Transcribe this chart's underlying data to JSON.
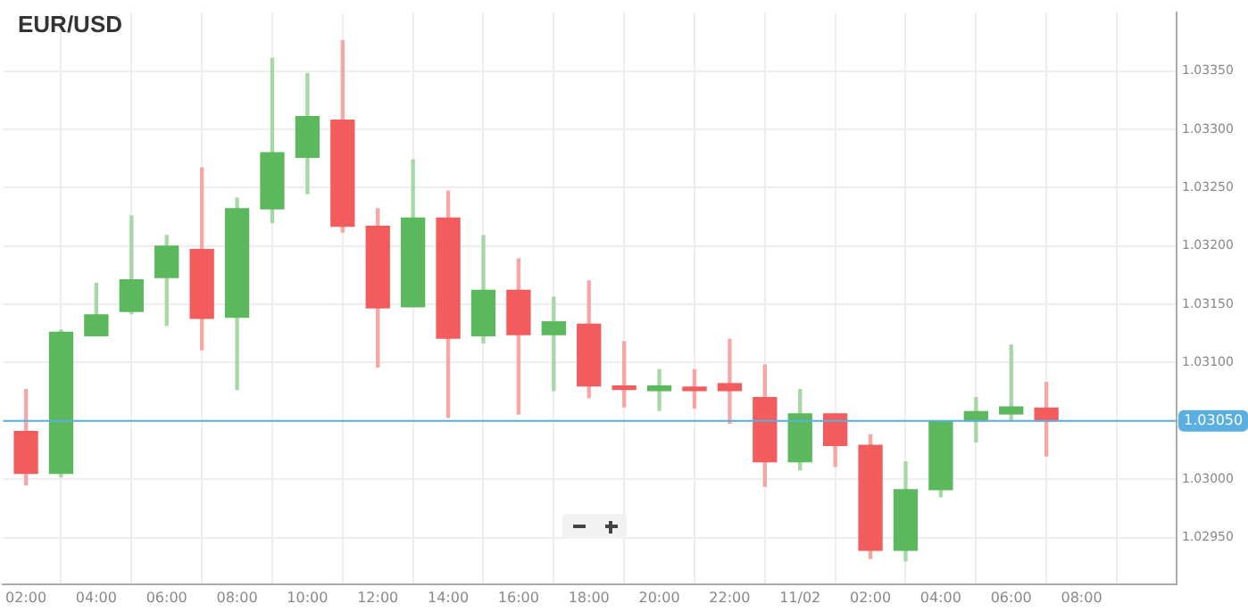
{
  "chart_data": {
    "type": "candlestick",
    "title": "EUR/USD",
    "x": [
      "--11-01T02:00",
      "--11-01T03:00",
      "--11-01T04:00",
      "--11-01T05:00",
      "--11-01T06:00",
      "--11-01T07:00",
      "--11-01T08:00",
      "--11-01T09:00",
      "--11-01T10:00",
      "--11-01T11:00",
      "--11-01T12:00",
      "--11-01T13:00",
      "--11-01T14:00",
      "--11-01T15:00",
      "--11-01T16:00",
      "--11-01T17:00",
      "--11-01T18:00",
      "--11-01T19:00",
      "--11-01T20:00",
      "--11-01T21:00",
      "--11-01T22:00",
      "--11-01T23:00",
      "--11-02T00:00",
      "--11-02T01:00",
      "--11-02T02:00",
      "--11-02T03:00",
      "--11-02T04:00",
      "--11-02T05:00",
      "--11-02T06:00",
      "--11-02T07:00"
    ],
    "ohlc": [
      [
        1.03041,
        1.03077,
        1.02995,
        1.03005
      ],
      [
        1.03005,
        1.03128,
        1.03002,
        1.03126
      ],
      [
        1.03123,
        1.03168,
        1.03123,
        1.03141
      ],
      [
        1.03144,
        1.03226,
        1.03142,
        1.03171
      ],
      [
        1.03173,
        1.03209,
        1.03132,
        1.032
      ],
      [
        1.03197,
        1.03267,
        1.03111,
        1.03138
      ],
      [
        1.03139,
        1.03241,
        1.03077,
        1.03232
      ],
      [
        1.03232,
        1.03361,
        1.0322,
        1.0328
      ],
      [
        1.03276,
        1.03348,
        1.03245,
        1.03311
      ],
      [
        1.03308,
        1.03376,
        1.03212,
        1.03217
      ],
      [
        1.03217,
        1.03232,
        1.03096,
        1.03147
      ],
      [
        1.03148,
        1.03274,
        1.03148,
        1.03224
      ],
      [
        1.03224,
        1.03247,
        1.03053,
        1.03121
      ],
      [
        1.03123,
        1.03209,
        1.03117,
        1.03162
      ],
      [
        1.03162,
        1.03189,
        1.03056,
        1.03124
      ],
      [
        1.03124,
        1.03156,
        1.03076,
        1.03135
      ],
      [
        1.03133,
        1.0317,
        1.0307,
        1.0308
      ],
      [
        1.0308,
        1.03118,
        1.03062,
        1.03077
      ],
      [
        1.03076,
        1.03094,
        1.03059,
        1.0308
      ],
      [
        1.03079,
        1.03094,
        1.03061,
        1.03076
      ],
      [
        1.03082,
        1.0312,
        1.03048,
        1.03076
      ],
      [
        1.0307,
        1.03098,
        1.02994,
        1.03015
      ],
      [
        1.03015,
        1.03077,
        1.03008,
        1.03056
      ],
      [
        1.03056,
        1.03056,
        1.03011,
        1.03029
      ],
      [
        1.03029,
        1.03038,
        1.02932,
        1.02939
      ],
      [
        1.02939,
        1.03015,
        1.0293,
        1.02991
      ],
      [
        1.02991,
        1.0305,
        1.02985,
        1.0305
      ],
      [
        1.0305,
        1.0307,
        1.03032,
        1.03058
      ],
      [
        1.03056,
        1.03115,
        1.0305,
        1.03062
      ],
      [
        1.03061,
        1.03083,
        1.0302,
        1.0305
      ]
    ],
    "colors": [
      "#f25c5c",
      "#5cb85c",
      "#5cb85c",
      "#5cb85c",
      "#5cb85c",
      "#f25c5c",
      "#5cb85c",
      "#5cb85c",
      "#5cb85c",
      "#f25c5c",
      "#f25c5c",
      "#5cb85c",
      "#f25c5c",
      "#5cb85c",
      "#f25c5c",
      "#5cb85c",
      "#f25c5c",
      "#f25c5c",
      "#5cb85c",
      "#f25c5c",
      "#f25c5c",
      "#f25c5c",
      "#5cb85c",
      "#f25c5c",
      "#f25c5c",
      "#5cb85c",
      "#5cb85c",
      "#5cb85c",
      "#5cb85c",
      "#f25c5c"
    ],
    "xlim": [
      "--11-01T01:21",
      "--11-02T10:42"
    ],
    "xticks": [
      {
        "value": "--11-01T02:00",
        "label": "02:00"
      },
      {
        "value": "--11-01T04:00",
        "label": "04:00"
      },
      {
        "value": "--11-01T06:00",
        "label": "06:00"
      },
      {
        "value": "--11-01T08:00",
        "label": "08:00"
      },
      {
        "value": "--11-01T10:00",
        "label": "10:00"
      },
      {
        "value": "--11-01T12:00",
        "label": "12:00"
      },
      {
        "value": "--11-01T14:00",
        "label": "14:00"
      },
      {
        "value": "--11-01T16:00",
        "label": "16:00"
      },
      {
        "value": "--11-01T18:00",
        "label": "18:00"
      },
      {
        "value": "--11-01T20:00",
        "label": "20:00"
      },
      {
        "value": "--11-01T22:00",
        "label": "22:00"
      },
      {
        "value": "--11-02T00:00",
        "label": "11/02"
      },
      {
        "value": "--11-02T02:00",
        "label": "02:00"
      },
      {
        "value": "--11-02T04:00",
        "label": "04:00"
      },
      {
        "value": "--11-02T06:00",
        "label": "06:00"
      },
      {
        "value": "--11-02T08:00",
        "label": "08:00"
      }
    ],
    "ylim": [
      1.0291,
      1.034
    ],
    "yticks": [
      {
        "value": 1.0295,
        "label": "1.02950"
      },
      {
        "value": 1.03,
        "label": "1.03000"
      },
      {
        "value": 1.0305,
        "label": null
      },
      {
        "value": 1.031,
        "label": "1.03100"
      },
      {
        "value": 1.0315,
        "label": "1.03150"
      },
      {
        "value": 1.032,
        "label": "1.03200"
      },
      {
        "value": 1.0325,
        "label": "1.03250"
      },
      {
        "value": 1.033,
        "label": "1.03300"
      },
      {
        "value": 1.0335,
        "label": "1.03350"
      }
    ],
    "ref_lines": [
      {
        "axis": "y",
        "value": 1.0305,
        "label": "1.03050",
        "color": "#5aaee0"
      }
    ],
    "grid": true,
    "legend": false
  }
}
